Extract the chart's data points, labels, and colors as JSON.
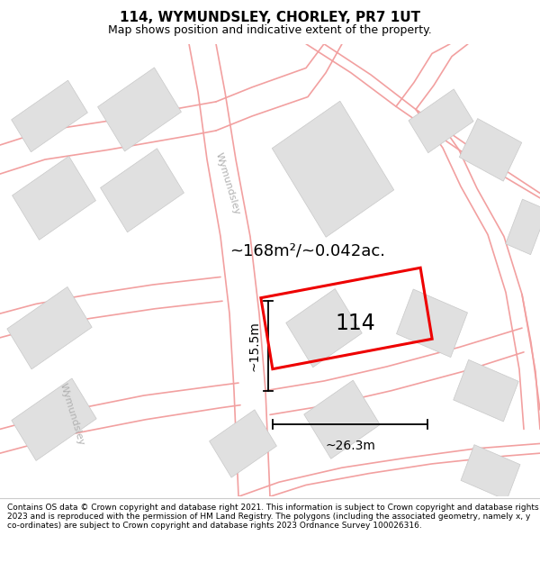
{
  "title": "114, WYMUNDSLEY, CHORLEY, PR7 1UT",
  "subtitle": "Map shows position and indicative extent of the property.",
  "area_label": "~168m²/~0.042ac.",
  "dim_width": "~26.3m",
  "dim_height": "~15.5m",
  "plot_label": "114",
  "footer": "Contains OS data © Crown copyright and database right 2021. This information is subject to Crown copyright and database rights 2023 and is reproduced with the permission of HM Land Registry. The polygons (including the associated geometry, namely x, y co-ordinates) are subject to Crown copyright and database rights 2023 Ordnance Survey 100026316.",
  "map_bg": "#ffffff",
  "road_color": "#f2a0a0",
  "building_color": "#e0e0e0",
  "building_edge": "#c8c8c8",
  "plot_color": "#ee0000",
  "road_label_color": "#b0b0b0",
  "title_fontsize": 11,
  "subtitle_fontsize": 9,
  "label_fontsize": 17,
  "area_fontsize": 13,
  "dim_fontsize": 10,
  "footer_fontsize": 6.5
}
